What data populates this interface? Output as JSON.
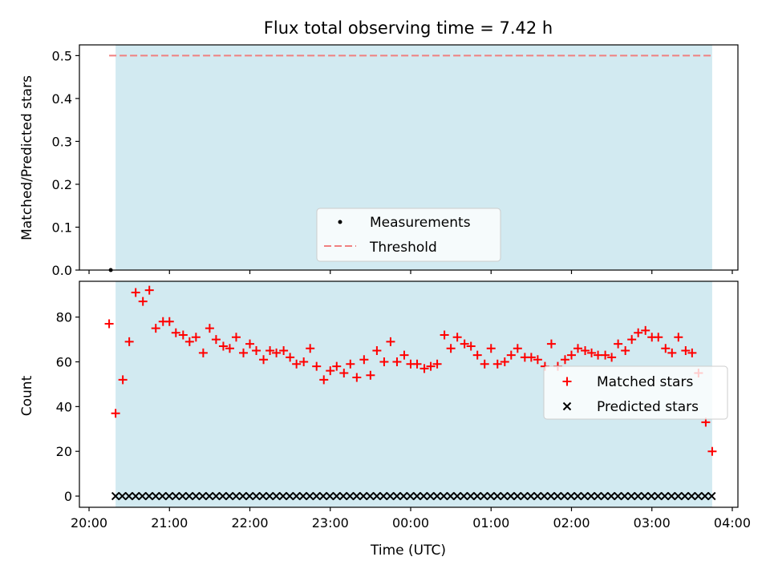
{
  "figure": {
    "title": "Flux total observing time = 7.42 h",
    "xlabel": "Time (UTC)",
    "x_tick_labels": [
      "20:00",
      "21:00",
      "22:00",
      "23:00",
      "00:00",
      "01:00",
      "02:00",
      "03:00",
      "04:00"
    ]
  },
  "colors": {
    "shade": "#add8e6",
    "matched": "#ff0000",
    "predicted": "#000000",
    "threshold": "#f08080",
    "measurement": "#000000"
  },
  "chart_data": [
    {
      "type": "scatter",
      "ylabel": "Matched/Predicted stars",
      "xlim_hours": [
        19.88,
        28.07
      ],
      "ylim": [
        0,
        0.525
      ],
      "yticks": [
        0.0,
        0.1,
        0.2,
        0.3,
        0.4,
        0.5
      ],
      "ytick_labels": [
        "0.0",
        "0.1",
        "0.2",
        "0.3",
        "0.4",
        "0.5"
      ],
      "shaded_span_hours": [
        20.33,
        27.75
      ],
      "threshold": 0.5,
      "threshold_span_hours": [
        20.25,
        27.75
      ],
      "measurements": [
        {
          "x_hours": 20.27,
          "y": 0.0
        }
      ],
      "legend": {
        "placement": "lower-center",
        "entries": [
          "Measurements",
          "Threshold"
        ]
      }
    },
    {
      "type": "scatter",
      "ylabel": "Count",
      "xlim_hours": [
        19.88,
        28.07
      ],
      "ylim": [
        -5,
        96
      ],
      "yticks": [
        0,
        20,
        40,
        60,
        80
      ],
      "ytick_labels": [
        "0",
        "20",
        "40",
        "60",
        "80"
      ],
      "shaded_span_hours": [
        20.33,
        27.75
      ],
      "legend": {
        "placement": "right",
        "entries": [
          "Matched stars",
          "Predicted stars"
        ]
      },
      "series": [
        {
          "name": "Matched stars",
          "x_hours": [
            20.25,
            20.33,
            20.42,
            20.5,
            20.58,
            20.67,
            20.75,
            20.83,
            20.92,
            21.0,
            21.08,
            21.17,
            21.25,
            21.33,
            21.42,
            21.5,
            21.58,
            21.67,
            21.75,
            21.83,
            21.92,
            22.0,
            22.08,
            22.17,
            22.25,
            22.33,
            22.42,
            22.5,
            22.58,
            22.67,
            22.75,
            22.83,
            22.92,
            23.0,
            23.08,
            23.17,
            23.25,
            23.33,
            23.42,
            23.5,
            23.58,
            23.67,
            23.75,
            23.83,
            23.92,
            24.0,
            24.08,
            24.17,
            24.25,
            24.33,
            24.42,
            24.5,
            24.58,
            24.67,
            24.75,
            24.83,
            24.92,
            25.0,
            25.08,
            25.17,
            25.25,
            25.33,
            25.42,
            25.5,
            25.58,
            25.67,
            25.75,
            25.83,
            25.92,
            26.0,
            26.08,
            26.17,
            26.25,
            26.33,
            26.42,
            26.5,
            26.58,
            26.67,
            26.75,
            26.83,
            26.92,
            27.0,
            27.08,
            27.17,
            27.25,
            27.33,
            27.42,
            27.5,
            27.58,
            27.67,
            27.75
          ],
          "values": [
            77,
            37,
            52,
            69,
            91,
            87,
            92,
            75,
            78,
            78,
            73,
            72,
            69,
            71,
            64,
            75,
            70,
            67,
            66,
            71,
            64,
            68,
            65,
            61,
            65,
            64,
            65,
            62,
            59,
            60,
            66,
            58,
            52,
            56,
            58,
            55,
            59,
            53,
            61,
            54,
            65,
            60,
            69,
            60,
            63,
            59,
            59,
            57,
            58,
            59,
            72,
            66,
            71,
            68,
            67,
            63,
            59,
            66,
            59,
            60,
            63,
            66,
            62,
            62,
            61,
            58,
            68,
            58,
            61,
            63,
            66,
            65,
            64,
            63,
            63,
            62,
            68,
            65,
            70,
            73,
            74,
            71,
            71,
            66,
            64,
            71,
            65,
            64,
            55,
            33,
            20
          ]
        },
        {
          "name": "Predicted stars",
          "x_start_hours": 20.33,
          "x_step_hours": 0.0833,
          "count": 90,
          "value": 0
        }
      ]
    }
  ]
}
